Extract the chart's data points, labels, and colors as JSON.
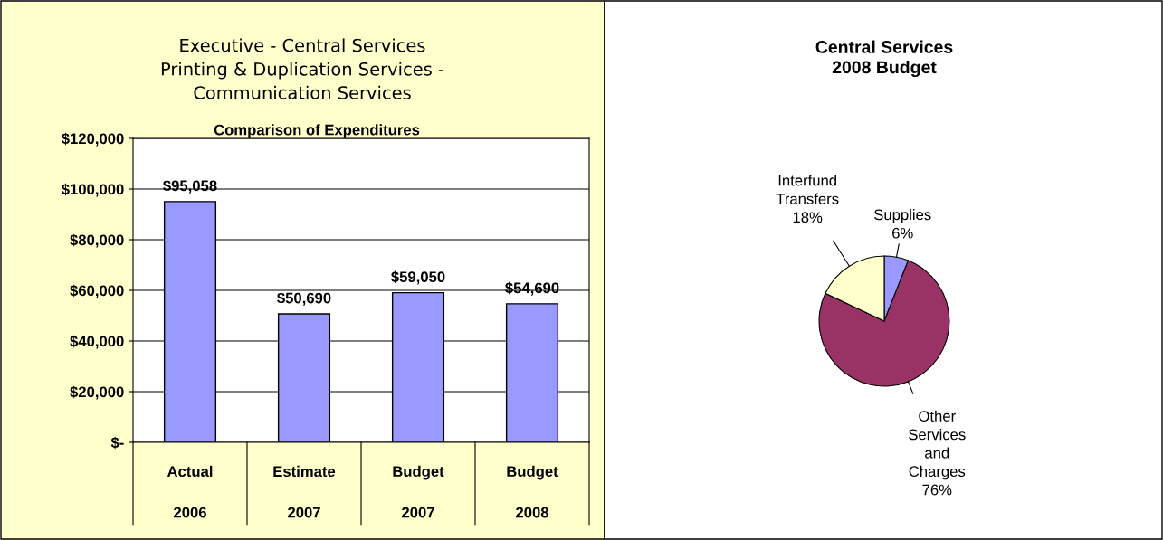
{
  "chart_data": [
    {
      "type": "bar",
      "title": "Executive - Central Services\nPrinting & Duplication Services -\nCommunication Services",
      "subtitle": "Comparison of Expenditures",
      "categories": [
        "Actual\n2006",
        "Estimate\n2007",
        "Budget\n2007",
        "Budget\n2008"
      ],
      "values": [
        95058,
        50690,
        59050,
        54690
      ],
      "value_labels": [
        "$95,058",
        "$50,690",
        "$59,050",
        "$54,690"
      ],
      "color": "#9999ff",
      "ylim": [
        0,
        120000
      ],
      "yticks": [
        {
          "value": 0,
          "label": "$-"
        },
        {
          "value": 20000,
          "label": "$20,000"
        },
        {
          "value": 40000,
          "label": "$40,000"
        },
        {
          "value": 60000,
          "label": "$60,000"
        },
        {
          "value": 80000,
          "label": "$80,000"
        },
        {
          "value": 100000,
          "label": "$100,000"
        },
        {
          "value": 120000,
          "label": "$120,000"
        }
      ],
      "grid": "y",
      "legend": false
    },
    {
      "type": "pie",
      "title": "Central Services\n2008 Budget",
      "categories": [
        "Supplies",
        "Other\nServices\nand\nCharges",
        "Interfund\nTransfers"
      ],
      "values": [
        6,
        76,
        18
      ],
      "value_labels": [
        "6%",
        "76%",
        "18%"
      ],
      "colors": [
        "#9999ff",
        "#993366",
        "#ffffcc"
      ],
      "legend": false
    }
  ]
}
